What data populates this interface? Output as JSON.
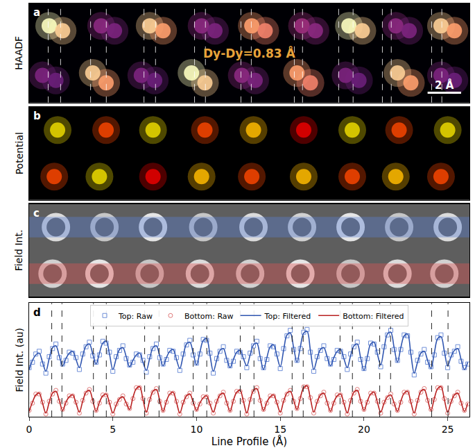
{
  "chart_data": [
    {
      "type": "scatter",
      "panel_label": "a",
      "ylabel": "HAADF",
      "tick_labels": false,
      "xlim": [
        0,
        26.3
      ],
      "ylim": [
        0,
        2
      ],
      "color": "magma",
      "marker": "circle",
      "color_range": [
        0,
        1
      ],
      "annotation": "Dy-Dy=0.83 Å",
      "scale_bar": {
        "length": 2,
        "label": "2 Å"
      },
      "dashed_lines": [
        1.14,
        1.88,
        3.67,
        4.61,
        6.86,
        7.55,
        9.88,
        10.53,
        12.65,
        13.27,
        15.84,
        16.33,
        18.49,
        19.35,
        21.1,
        21.63,
        24.04,
        24.65
      ],
      "spots": {
        "x": [
          1.2,
          2.0,
          7.2,
          8.0,
          13.3,
          14.1,
          19.1,
          19.9,
          24.6,
          25.4,
          4.3,
          5.1,
          10.3,
          11.1,
          16.3,
          17.1,
          21.9,
          22.7,
          3.8,
          4.6,
          9.7,
          10.5,
          16.0,
          16.8,
          22.0,
          22.8,
          0.8,
          1.6,
          6.7,
          7.5,
          12.7,
          13.5,
          18.9,
          19.7,
          24.6,
          25.4
        ],
        "y": [
          1.55,
          1.45,
          1.55,
          1.45,
          1.55,
          1.45,
          1.55,
          1.45,
          1.55,
          1.45,
          1.55,
          1.45,
          1.55,
          1.45,
          1.55,
          1.45,
          1.55,
          1.45,
          0.6,
          0.4,
          0.6,
          0.4,
          0.6,
          0.4,
          0.6,
          0.4,
          0.55,
          0.45,
          0.55,
          0.45,
          0.55,
          0.45,
          0.55,
          0.45,
          0.55,
          0.45
        ],
        "intensity": [
          1.0,
          0.95,
          0.95,
          0.9,
          0.9,
          0.85,
          1.0,
          0.95,
          0.95,
          0.9,
          0.5,
          0.45,
          0.5,
          0.45,
          0.55,
          0.5,
          0.5,
          0.45,
          0.95,
          0.9,
          1.0,
          0.95,
          0.9,
          0.85,
          0.95,
          0.9,
          0.45,
          0.4,
          0.45,
          0.4,
          0.5,
          0.45,
          0.45,
          0.4,
          0.45,
          0.4
        ]
      }
    },
    {
      "type": "scatter",
      "panel_label": "b",
      "ylabel": "Potential",
      "tick_labels": false,
      "xlim": [
        0,
        26.3
      ],
      "ylim": [
        0,
        2
      ],
      "color": "spectral",
      "marker": "circle",
      "color_range": [
        0,
        1
      ],
      "spots": {
        "x": [
          1.7,
          4.6,
          7.4,
          10.5,
          13.4,
          16.4,
          19.3,
          22.1,
          25.0,
          1.5,
          4.2,
          7.4,
          10.3,
          13.3,
          16.4,
          19.3,
          21.9,
          24.6
        ],
        "y": [
          1.5,
          1.5,
          1.5,
          1.5,
          1.5,
          1.5,
          1.5,
          1.5,
          1.5,
          0.5,
          0.5,
          0.5,
          0.5,
          0.5,
          0.5,
          0.5,
          0.5,
          0.5
        ],
        "intensity": [
          0.8,
          0.95,
          0.8,
          0.95,
          0.85,
          1.0,
          0.8,
          0.95,
          0.8,
          0.95,
          0.8,
          1.0,
          0.85,
          0.95,
          0.85,
          0.95,
          0.85,
          0.95
        ]
      }
    },
    {
      "type": "scatter",
      "panel_label": "c",
      "ylabel": "Field Int.",
      "tick_labels": false,
      "xlim": [
        0,
        26.3
      ],
      "ylim": [
        0,
        2
      ],
      "color": "greys",
      "marker": "circle-open",
      "color_range": [
        0,
        1
      ],
      "bands": [
        {
          "y": 1.5,
          "color": "#5b7fd1"
        },
        {
          "y": 0.5,
          "color": "#e05555"
        }
      ],
      "spots": {
        "x": [
          1.6,
          4.5,
          7.4,
          10.4,
          13.4,
          16.3,
          19.2,
          22.1,
          25.0,
          1.4,
          4.2,
          7.2,
          10.2,
          13.2,
          16.2,
          19.2,
          22.0,
          24.8
        ],
        "y": [
          1.5,
          1.5,
          1.5,
          1.5,
          1.5,
          1.5,
          1.5,
          1.5,
          1.5,
          0.5,
          0.5,
          0.5,
          0.5,
          0.5,
          0.5,
          0.5,
          0.5,
          0.5
        ],
        "intensity": [
          0.9,
          0.8,
          0.95,
          0.8,
          0.9,
          0.85,
          0.95,
          0.8,
          0.9,
          0.85,
          0.95,
          0.8,
          0.9,
          0.85,
          0.95,
          0.8,
          0.9,
          0.85
        ]
      }
    },
    {
      "type": "line",
      "panel_label": "d",
      "xlabel": "Line Profile (Å)",
      "ylabel": "Field Int. (au)",
      "tick_labels": "x",
      "legend": "top",
      "xlim": [
        0,
        26.3
      ],
      "xticks": [
        0,
        5,
        10,
        15,
        20,
        25
      ],
      "ylim": [
        0,
        12.5
      ],
      "dashed_lines": [
        1.35,
        1.96,
        3.84,
        4.61,
        6.9,
        7.76,
        9.8,
        10.61,
        12.61,
        13.43,
        15.71,
        16.37,
        18.57,
        19.31,
        20.94,
        21.59,
        24.04,
        25.02
      ],
      "x": [
        0,
        0.2,
        0.4,
        0.6,
        0.8,
        1,
        1.2,
        1.4,
        1.6,
        1.8,
        2,
        2.2,
        2.4,
        2.6,
        2.8,
        3,
        3.2,
        3.4,
        3.6,
        3.8,
        4,
        4.2,
        4.4,
        4.6,
        4.8,
        5,
        5.2,
        5.4,
        5.6,
        5.8,
        6,
        6.2,
        6.4,
        6.6,
        6.8,
        7,
        7.2,
        7.4,
        7.6,
        7.8,
        8,
        8.2,
        8.4,
        8.6,
        8.8,
        9,
        9.2,
        9.4,
        9.6,
        9.8,
        10,
        10.2,
        10.4,
        10.6,
        10.8,
        11,
        11.2,
        11.4,
        11.6,
        11.8,
        12,
        12.2,
        12.4,
        12.6,
        12.8,
        13,
        13.2,
        13.4,
        13.6,
        13.8,
        14,
        14.2,
        14.4,
        14.6,
        14.8,
        15,
        15.2,
        15.4,
        15.6,
        15.8,
        16,
        16.2,
        16.4,
        16.6,
        16.8,
        17,
        17.2,
        17.4,
        17.6,
        17.8,
        18,
        18.2,
        18.4,
        18.6,
        18.8,
        19,
        19.2,
        19.4,
        19.6,
        19.8,
        20,
        20.2,
        20.4,
        20.6,
        20.8,
        21,
        21.2,
        21.4,
        21.6,
        21.8,
        22,
        22.2,
        22.4,
        22.6,
        22.8,
        23,
        23.2,
        23.4,
        23.6,
        23.8,
        24,
        24.2,
        24.4,
        24.6,
        24.8,
        25,
        25.2,
        25.4,
        25.6,
        25.8,
        26,
        26.2
      ],
      "series": [
        {
          "name": "Top: Raw",
          "type": "scatter",
          "color": "#6f8fd8",
          "marker": "square-open",
          "values": [
            5.4,
            6.0,
            6.9,
            7.2,
            5.8,
            4.8,
            6.6,
            7.5,
            8.0,
            6.5,
            5.8,
            6.2,
            7.1,
            7.0,
            6.5,
            5.2,
            6.9,
            7.7,
            8.2,
            6.7,
            6.0,
            6.8,
            8.3,
            8.1,
            7.1,
            5.0,
            6.6,
            7.3,
            7.8,
            6.4,
            5.7,
            6.0,
            6.9,
            6.8,
            6.2,
            4.9,
            6.6,
            7.5,
            8.0,
            6.5,
            5.8,
            6.3,
            7.3,
            7.2,
            6.5,
            5.1,
            6.9,
            7.9,
            8.4,
            6.8,
            5.9,
            6.9,
            8.5,
            8.4,
            7.0,
            4.8,
            6.4,
            7.2,
            7.7,
            6.2,
            5.6,
            6.1,
            7.2,
            7.1,
            6.6,
            5.4,
            7.0,
            7.8,
            8.3,
            6.4,
            5.4,
            6.3,
            7.8,
            7.7,
            6.9,
            5.3,
            7.5,
            8.9,
            9.5,
            7.4,
            6.2,
            7.5,
            9.3,
            9.6,
            7.1,
            5.0,
            6.6,
            7.3,
            7.8,
            6.4,
            5.8,
            6.3,
            7.3,
            7.2,
            6.6,
            5.2,
            6.9,
            7.7,
            8.2,
            6.3,
            5.3,
            6.4,
            8.1,
            8.0,
            7.1,
            5.5,
            7.7,
            9.0,
            9.5,
            7.4,
            6.2,
            7.4,
            9.0,
            8.9,
            7.1,
            4.6,
            6.2,
            6.9,
            7.4,
            6.0,
            5.5,
            6.8,
            8.7,
            9.0,
            7.0,
            5.4,
            6.8,
            7.2,
            7.7,
            6.1,
            5.4,
            5.8
          ]
        },
        {
          "name": "Bottom: Raw",
          "type": "scatter",
          "color": "#e07a7a",
          "marker": "circle-open",
          "values": [
            0.7,
            1.5,
            2.5,
            2.5,
            1.6,
            0.3,
            1.7,
            2.5,
            2.9,
            1.7,
            0.8,
            1.5,
            2.3,
            2.3,
            1.6,
            0.4,
            1.8,
            2.6,
            3.0,
            1.7,
            0.7,
            1.5,
            2.4,
            2.4,
            1.6,
            0.3,
            1.4,
            1.9,
            2.3,
            1.4,
            0.9,
            2.0,
            3.2,
            3.2,
            2.0,
            0.4,
            1.9,
            2.7,
            3.1,
            1.7,
            0.7,
            1.6,
            2.6,
            2.6,
            1.7,
            0.3,
            1.6,
            2.2,
            2.6,
            1.5,
            0.8,
            1.4,
            2.2,
            2.2,
            1.5,
            0.4,
            1.7,
            2.3,
            2.7,
            1.5,
            0.7,
            1.7,
            2.8,
            2.8,
            1.8,
            0.3,
            1.9,
            2.8,
            3.2,
            1.8,
            0.8,
            1.5,
            2.3,
            2.3,
            1.6,
            0.4,
            1.8,
            2.5,
            2.9,
            1.7,
            0.9,
            2.0,
            3.3,
            3.3,
            2.1,
            0.4,
            1.7,
            2.3,
            2.7,
            1.5,
            0.7,
            1.5,
            2.4,
            2.4,
            1.6,
            0.3,
            1.8,
            2.6,
            3.0,
            1.7,
            0.8,
            1.6,
            2.6,
            2.6,
            1.7,
            0.4,
            1.6,
            2.1,
            2.5,
            1.4,
            0.7,
            1.6,
            2.7,
            2.7,
            1.7,
            0.3,
            1.8,
            2.7,
            3.1,
            1.8,
            0.8,
            1.9,
            3.2,
            3.2,
            2.0,
            0.4,
            1.7,
            2.3,
            2.7,
            1.5,
            0.7,
            1.4
          ]
        },
        {
          "name": "Top: Filtered",
          "type": "line",
          "color": "#2f55b0",
          "line_style": "solid",
          "values": [
            5.2,
            6.2,
            6.8,
            7.0,
            6.0,
            5.0,
            6.4,
            7.6,
            7.8,
            6.7,
            5.6,
            6.4,
            7.0,
            7.2,
            6.3,
            5.4,
            6.7,
            7.8,
            8.0,
            6.9,
            5.8,
            7.0,
            8.1,
            8.3,
            6.9,
            5.2,
            6.4,
            7.4,
            7.6,
            6.6,
            5.5,
            6.2,
            6.8,
            7.0,
            6.0,
            5.1,
            6.4,
            7.6,
            7.8,
            6.7,
            5.6,
            6.5,
            7.2,
            7.4,
            6.3,
            5.3,
            6.7,
            8.0,
            8.2,
            7.0,
            5.7,
            7.1,
            8.4,
            8.6,
            6.8,
            5.0,
            6.2,
            7.3,
            7.5,
            6.4,
            5.4,
            6.3,
            7.1,
            7.3,
            6.4,
            5.6,
            6.8,
            7.9,
            8.1,
            6.6,
            5.2,
            6.5,
            7.7,
            7.9,
            6.7,
            5.5,
            7.3,
            9.0,
            9.2,
            7.6,
            6.0,
            7.7,
            9.2,
            9.4,
            7.3,
            5.2,
            6.4,
            7.4,
            7.6,
            6.6,
            5.6,
            6.5,
            7.2,
            7.4,
            6.4,
            5.4,
            6.7,
            7.8,
            8.0,
            6.5,
            5.1,
            6.6,
            8.0,
            8.2,
            6.9,
            5.7,
            7.5,
            9.1,
            9.3,
            7.6,
            6.0,
            7.6,
            8.9,
            9.1,
            6.9,
            4.8,
            6.0,
            7.0,
            7.2,
            6.2,
            5.3,
            7.0,
            8.6,
            8.8,
            7.2,
            5.6,
            6.6,
            7.3,
            7.5,
            6.3,
            5.2,
            6.0
          ]
        },
        {
          "name": "Bottom: Filtered",
          "type": "line",
          "color": "#b82020",
          "line_style": "solid",
          "values": [
            0.6,
            1.6,
            2.4,
            2.6,
            1.5,
            0.4,
            1.6,
            2.6,
            2.8,
            1.8,
            0.7,
            1.6,
            2.2,
            2.4,
            1.5,
            0.5,
            1.7,
            2.7,
            2.9,
            1.8,
            0.6,
            1.6,
            2.3,
            2.5,
            1.5,
            0.4,
            1.3,
            2.0,
            2.2,
            1.5,
            0.8,
            2.1,
            3.1,
            3.3,
            1.9,
            0.5,
            1.8,
            2.8,
            3.0,
            1.8,
            0.6,
            1.7,
            2.5,
            2.7,
            1.6,
            0.4,
            1.5,
            2.3,
            2.5,
            1.6,
            0.7,
            1.5,
            2.1,
            2.3,
            1.4,
            0.5,
            1.6,
            2.4,
            2.6,
            1.6,
            0.6,
            1.8,
            2.7,
            2.9,
            1.7,
            0.4,
            1.8,
            2.9,
            3.1,
            1.9,
            0.7,
            1.6,
            2.2,
            2.4,
            1.5,
            0.5,
            1.7,
            2.6,
            2.8,
            1.8,
            0.8,
            2.1,
            3.2,
            3.4,
            2.0,
            0.5,
            1.6,
            2.4,
            2.6,
            1.6,
            0.6,
            1.6,
            2.3,
            2.5,
            1.5,
            0.4,
            1.7,
            2.7,
            2.9,
            1.8,
            0.7,
            1.7,
            2.5,
            2.7,
            1.6,
            0.5,
            1.5,
            2.2,
            2.4,
            1.5,
            0.6,
            1.7,
            2.6,
            2.8,
            1.6,
            0.4,
            1.7,
            2.8,
            3.0,
            1.9,
            0.7,
            2.0,
            3.1,
            3.3,
            1.9,
            0.5,
            1.6,
            2.4,
            2.6,
            1.6,
            0.6,
            1.5
          ]
        }
      ]
    }
  ]
}
